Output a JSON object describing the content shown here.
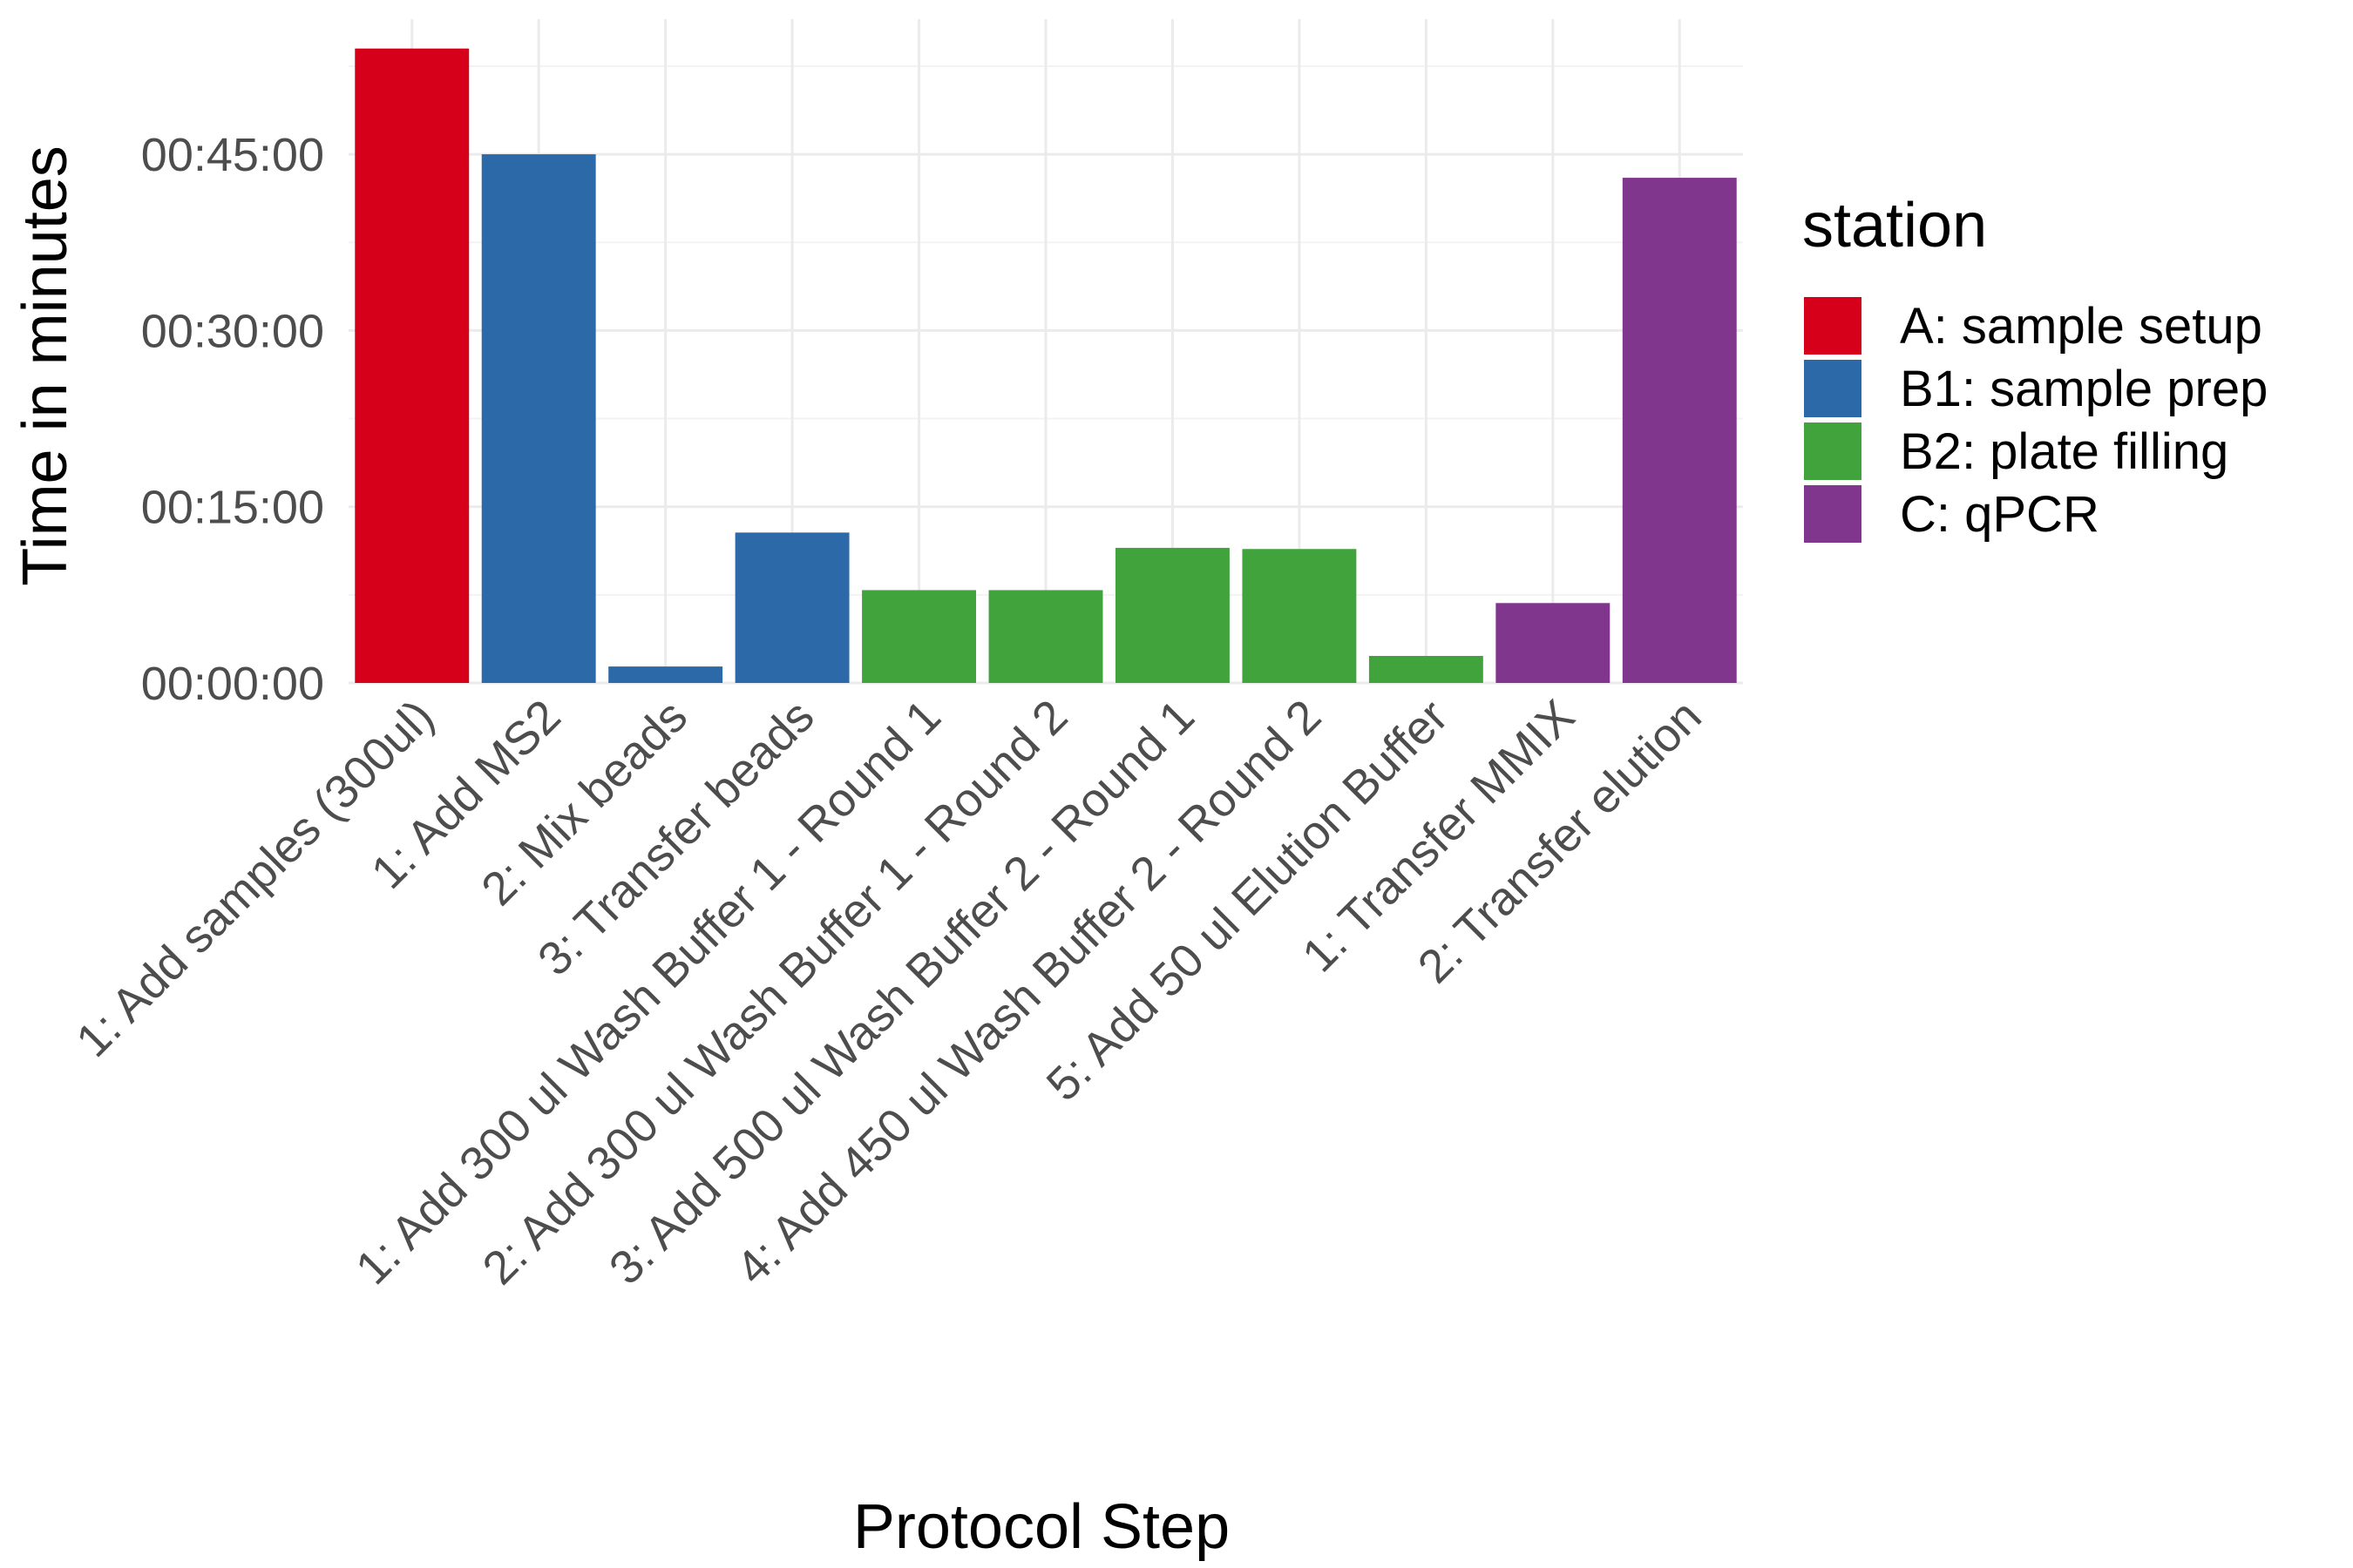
{
  "chart_data": {
    "type": "bar",
    "xlabel": "Protocol Step",
    "ylabel": "Time in minutes",
    "ylim": [
      0,
      56.5
    ],
    "yticks": [
      {
        "value": 0,
        "label": "00:00:00"
      },
      {
        "value": 15,
        "label": "00:15:00"
      },
      {
        "value": 30,
        "label": "00:30:00"
      },
      {
        "value": 45,
        "label": "00:45:00"
      }
    ],
    "legend": {
      "title": "station",
      "placement": "right",
      "entries": [
        {
          "name": "A: sample setup",
          "color": "#d7001b"
        },
        {
          "name": "B1: sample prep",
          "color": "#2c69a8"
        },
        {
          "name": "B2: plate filling",
          "color": "#40a33b"
        },
        {
          "name": "C: qPCR",
          "color": "#81368e"
        }
      ]
    },
    "categories": [
      "1: Add samples (300ul)",
      "1: Add MS2",
      "2: Mix beads",
      "3: Transfer beads",
      "1: Add 300 ul Wash Buffer 1 - Round 1",
      "2: Add 300 ul Wash Buffer 1 - Round 2",
      "3: Add 500 ul Wash Buffer 2 - Round 1",
      "4: Add 450 ul Wash Buffer 2 - Round 2",
      "5: Add 50 ul Elution Buffer",
      "1: Transfer MMIX",
      "2: Transfer elution"
    ],
    "values": [
      54.0,
      45.0,
      1.4,
      12.8,
      7.9,
      7.9,
      11.5,
      11.4,
      2.3,
      6.8,
      43.0
    ],
    "stations": [
      "A: sample setup",
      "B1: sample prep",
      "B1: sample prep",
      "B1: sample prep",
      "B2: plate filling",
      "B2: plate filling",
      "B2: plate filling",
      "B2: plate filling",
      "B2: plate filling",
      "C: qPCR",
      "C: qPCR"
    ],
    "grid": true
  }
}
